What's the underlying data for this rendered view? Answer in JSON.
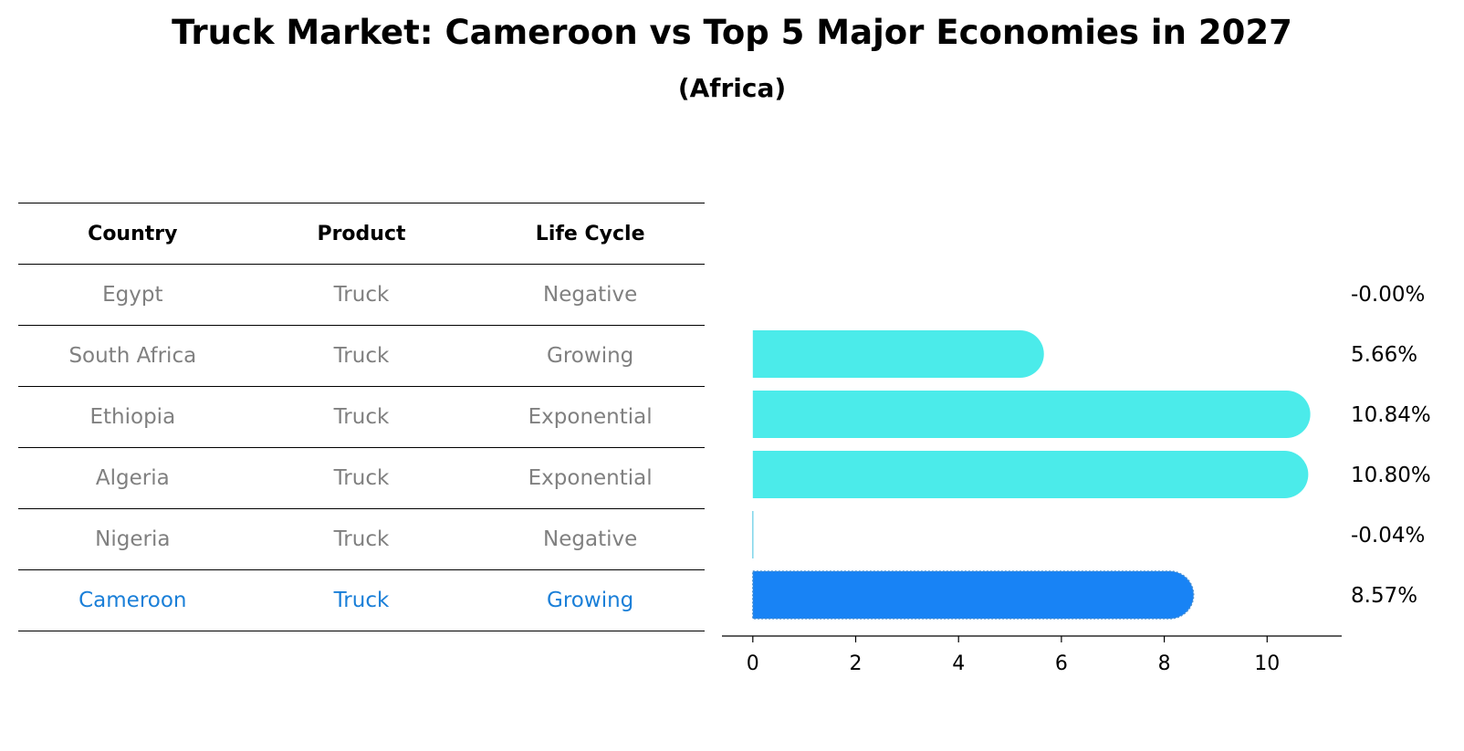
{
  "title": "Truck Market: Cameroon vs Top 5 Major Economies in 2027",
  "subtitle": "(Africa)",
  "table": {
    "headers": [
      "Country",
      "Product",
      "Life Cycle"
    ],
    "rows": [
      [
        "Egypt",
        "Truck",
        "Negative"
      ],
      [
        "South Africa",
        "Truck",
        "Growing"
      ],
      [
        "Ethiopia",
        "Truck",
        "Exponential"
      ],
      [
        "Algeria",
        "Truck",
        "Exponential"
      ],
      [
        "Nigeria",
        "Truck",
        "Negative"
      ],
      [
        "Cameroon",
        "Truck",
        "Growing"
      ]
    ],
    "highlight_row": 5
  },
  "colors": {
    "bar": "#4bebea",
    "highlight": "#1883f5",
    "highlight_text": "#1a7fd8",
    "muted_text": "#808080"
  },
  "chart_data": {
    "type": "bar",
    "orientation": "horizontal",
    "categories": [
      "Egypt",
      "South Africa",
      "Ethiopia",
      "Algeria",
      "Nigeria",
      "Cameroon"
    ],
    "values": [
      -0.0,
      5.66,
      10.84,
      10.8,
      -0.04,
      8.57
    ],
    "value_labels": [
      "-0.00%",
      "5.66%",
      "10.84%",
      "10.80%",
      "-0.04%",
      "8.57%"
    ],
    "highlight_category": "Cameroon",
    "xticks": [
      0,
      2,
      4,
      6,
      8,
      10
    ],
    "xlim": [
      -0.6,
      11.45
    ],
    "grid": false,
    "xlabel": "",
    "ylabel": ""
  }
}
